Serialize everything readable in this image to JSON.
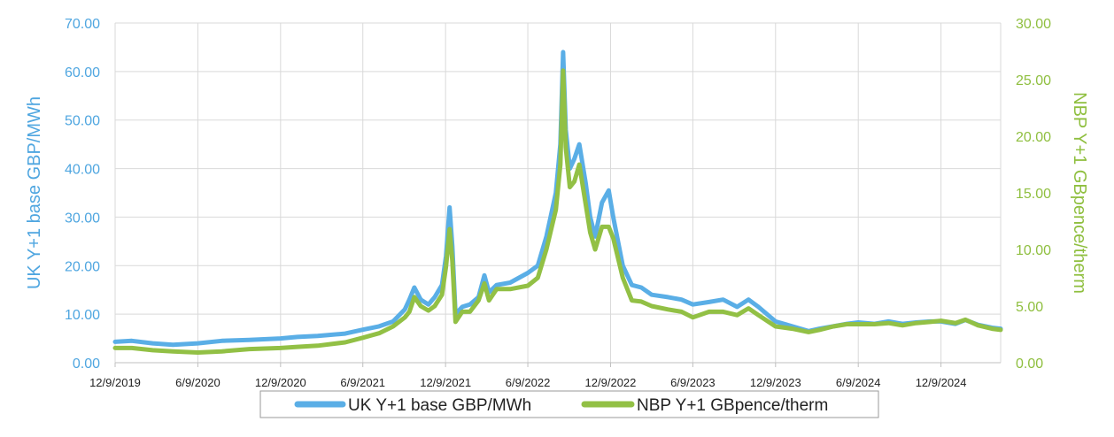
{
  "chart_data": {
    "type": "line",
    "x_tick_labels": [
      "12/9/2019",
      "6/9/2020",
      "12/9/2020",
      "6/9/2021",
      "12/9/2021",
      "6/9/2022",
      "12/9/2022",
      "6/9/2023",
      "12/9/2023",
      "6/9/2024",
      "12/9/2024"
    ],
    "x_range": [
      "2019-12-09",
      "2025-04-20"
    ],
    "y_left": {
      "label": "UK Y+1 base GBP/MWh",
      "min": 0,
      "max": 70,
      "step": 10,
      "tick_labels": [
        "0.00",
        "10.00",
        "20.00",
        "30.00",
        "40.00",
        "50.00",
        "60.00",
        "70.00"
      ],
      "color": "#4fa6e0"
    },
    "y_right": {
      "label": "NBP Y+1 GBpence/therm",
      "min": 0,
      "max": 30,
      "step": 5,
      "tick_labels": [
        "0.00",
        "5.00",
        "10.00",
        "15.00",
        "20.00",
        "25.00",
        "30.00"
      ],
      "color": "#8fbf3f"
    },
    "grid": true,
    "legend_position": "bottom",
    "series": [
      {
        "name": "UK Y+1 base GBP/MWh",
        "axis": "left",
        "color": "#5aaee6",
        "points": [
          [
            "2019-12-09",
            4.3
          ],
          [
            "2020-01-15",
            4.5
          ],
          [
            "2020-03-01",
            4.0
          ],
          [
            "2020-04-15",
            3.7
          ],
          [
            "2020-06-09",
            4.0
          ],
          [
            "2020-08-01",
            4.5
          ],
          [
            "2020-10-01",
            4.7
          ],
          [
            "2020-12-09",
            5.0
          ],
          [
            "2021-01-15",
            5.3
          ],
          [
            "2021-03-01",
            5.5
          ],
          [
            "2021-05-01",
            6.0
          ],
          [
            "2021-06-09",
            6.8
          ],
          [
            "2021-07-15",
            7.5
          ],
          [
            "2021-08-15",
            8.5
          ],
          [
            "2021-09-10",
            11.0
          ],
          [
            "2021-09-20",
            13.0
          ],
          [
            "2021-10-01",
            15.5
          ],
          [
            "2021-10-15",
            13.0
          ],
          [
            "2021-11-01",
            12.0
          ],
          [
            "2021-11-15",
            13.5
          ],
          [
            "2021-12-01",
            16.0
          ],
          [
            "2021-12-10",
            22.0
          ],
          [
            "2021-12-18",
            32.0
          ],
          [
            "2021-12-24",
            24.0
          ],
          [
            "2021-12-31",
            10.0
          ],
          [
            "2022-01-15",
            11.5
          ],
          [
            "2022-02-01",
            12.0
          ],
          [
            "2022-02-20",
            13.5
          ],
          [
            "2022-03-05",
            18.0
          ],
          [
            "2022-03-15",
            14.5
          ],
          [
            "2022-04-01",
            16.0
          ],
          [
            "2022-05-01",
            16.5
          ],
          [
            "2022-06-09",
            18.5
          ],
          [
            "2022-07-01",
            20.0
          ],
          [
            "2022-07-20",
            26.0
          ],
          [
            "2022-08-10",
            35.0
          ],
          [
            "2022-08-20",
            45.0
          ],
          [
            "2022-08-26",
            64.0
          ],
          [
            "2022-09-01",
            48.0
          ],
          [
            "2022-09-10",
            40.0
          ],
          [
            "2022-09-20",
            42.0
          ],
          [
            "2022-10-01",
            45.0
          ],
          [
            "2022-10-15",
            37.0
          ],
          [
            "2022-10-25",
            30.0
          ],
          [
            "2022-11-05",
            26.0
          ],
          [
            "2022-11-20",
            33.0
          ],
          [
            "2022-12-05",
            35.5
          ],
          [
            "2022-12-15",
            30.0
          ],
          [
            "2023-01-05",
            20.0
          ],
          [
            "2023-01-25",
            16.0
          ],
          [
            "2023-02-15",
            15.5
          ],
          [
            "2023-03-10",
            14.0
          ],
          [
            "2023-04-15",
            13.5
          ],
          [
            "2023-05-15",
            13.0
          ],
          [
            "2023-06-09",
            12.0
          ],
          [
            "2023-07-15",
            12.5
          ],
          [
            "2023-08-15",
            13.0
          ],
          [
            "2023-09-15",
            11.5
          ],
          [
            "2023-10-10",
            13.0
          ],
          [
            "2023-11-01",
            11.5
          ],
          [
            "2023-12-09",
            8.5
          ],
          [
            "2024-01-15",
            7.5
          ],
          [
            "2024-02-20",
            6.5
          ],
          [
            "2024-03-15",
            7.0
          ],
          [
            "2024-04-15",
            7.5
          ],
          [
            "2024-05-15",
            8.0
          ],
          [
            "2024-06-09",
            8.3
          ],
          [
            "2024-07-15",
            8.0
          ],
          [
            "2024-08-15",
            8.5
          ],
          [
            "2024-09-15",
            8.0
          ],
          [
            "2024-10-15",
            8.3
          ],
          [
            "2024-11-15",
            8.5
          ],
          [
            "2024-12-09",
            8.5
          ],
          [
            "2025-01-10",
            8.0
          ],
          [
            "2025-02-01",
            8.8
          ],
          [
            "2025-03-01",
            7.8
          ],
          [
            "2025-04-01",
            7.2
          ],
          [
            "2025-04-20",
            7.0
          ]
        ]
      },
      {
        "name": "NBP Y+1 GBpence/therm",
        "axis": "right",
        "color": "#92c045",
        "points": [
          [
            "2019-12-09",
            1.3
          ],
          [
            "2020-01-15",
            1.3
          ],
          [
            "2020-03-01",
            1.1
          ],
          [
            "2020-04-15",
            1.0
          ],
          [
            "2020-06-09",
            0.9
          ],
          [
            "2020-08-01",
            1.0
          ],
          [
            "2020-10-01",
            1.2
          ],
          [
            "2020-12-09",
            1.3
          ],
          [
            "2021-01-15",
            1.4
          ],
          [
            "2021-03-01",
            1.5
          ],
          [
            "2021-05-01",
            1.8
          ],
          [
            "2021-06-09",
            2.2
          ],
          [
            "2021-07-15",
            2.6
          ],
          [
            "2021-08-15",
            3.2
          ],
          [
            "2021-09-10",
            4.0
          ],
          [
            "2021-09-20",
            4.5
          ],
          [
            "2021-10-01",
            5.8
          ],
          [
            "2021-10-15",
            5.0
          ],
          [
            "2021-11-01",
            4.6
          ],
          [
            "2021-11-15",
            5.0
          ],
          [
            "2021-12-01",
            6.0
          ],
          [
            "2021-12-10",
            8.5
          ],
          [
            "2021-12-18",
            11.8
          ],
          [
            "2021-12-24",
            9.0
          ],
          [
            "2021-12-31",
            3.6
          ],
          [
            "2022-01-15",
            4.5
          ],
          [
            "2022-02-01",
            4.5
          ],
          [
            "2022-02-20",
            5.5
          ],
          [
            "2022-03-05",
            7.0
          ],
          [
            "2022-03-15",
            5.5
          ],
          [
            "2022-04-01",
            6.5
          ],
          [
            "2022-05-01",
            6.5
          ],
          [
            "2022-06-09",
            6.8
          ],
          [
            "2022-07-01",
            7.5
          ],
          [
            "2022-07-20",
            10.0
          ],
          [
            "2022-08-10",
            13.5
          ],
          [
            "2022-08-20",
            17.5
          ],
          [
            "2022-08-26",
            25.8
          ],
          [
            "2022-09-01",
            19.0
          ],
          [
            "2022-09-10",
            15.5
          ],
          [
            "2022-09-20",
            16.0
          ],
          [
            "2022-10-01",
            17.5
          ],
          [
            "2022-10-15",
            14.0
          ],
          [
            "2022-10-25",
            11.5
          ],
          [
            "2022-11-05",
            10.0
          ],
          [
            "2022-11-20",
            12.0
          ],
          [
            "2022-12-05",
            12.0
          ],
          [
            "2022-12-15",
            11.0
          ],
          [
            "2023-01-05",
            7.5
          ],
          [
            "2023-01-25",
            5.5
          ],
          [
            "2023-02-15",
            5.4
          ],
          [
            "2023-03-10",
            5.0
          ],
          [
            "2023-04-15",
            4.7
          ],
          [
            "2023-05-15",
            4.5
          ],
          [
            "2023-06-09",
            4.0
          ],
          [
            "2023-07-15",
            4.5
          ],
          [
            "2023-08-15",
            4.5
          ],
          [
            "2023-09-15",
            4.2
          ],
          [
            "2023-10-10",
            4.8
          ],
          [
            "2023-11-01",
            4.2
          ],
          [
            "2023-12-09",
            3.2
          ],
          [
            "2024-01-15",
            3.0
          ],
          [
            "2024-02-20",
            2.7
          ],
          [
            "2024-03-15",
            2.9
          ],
          [
            "2024-04-15",
            3.2
          ],
          [
            "2024-05-15",
            3.4
          ],
          [
            "2024-06-09",
            3.4
          ],
          [
            "2024-07-15",
            3.4
          ],
          [
            "2024-08-15",
            3.5
          ],
          [
            "2024-09-15",
            3.3
          ],
          [
            "2024-10-15",
            3.5
          ],
          [
            "2024-11-15",
            3.6
          ],
          [
            "2024-12-09",
            3.7
          ],
          [
            "2025-01-10",
            3.5
          ],
          [
            "2025-02-01",
            3.8
          ],
          [
            "2025-03-01",
            3.3
          ],
          [
            "2025-04-01",
            3.0
          ],
          [
            "2025-04-20",
            2.9
          ]
        ]
      }
    ]
  }
}
